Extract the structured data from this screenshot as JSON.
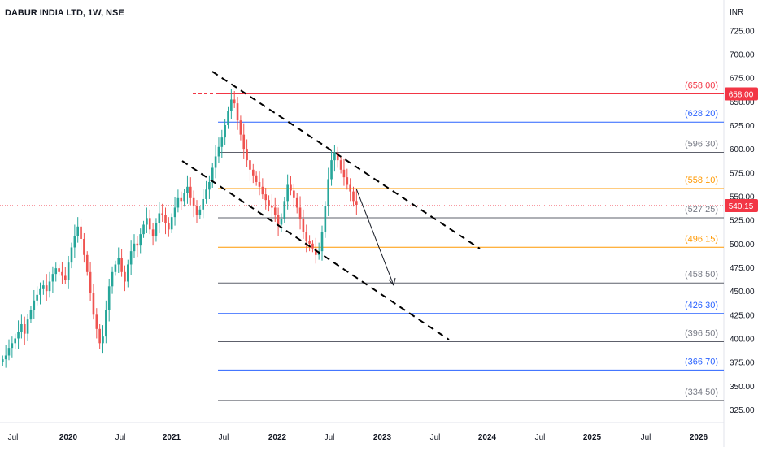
{
  "header": {
    "title": "DABUR INDIA LTD, 1W, NSE"
  },
  "currency_label": "INR",
  "colors": {
    "up": "#26a69a",
    "down": "#ef5350",
    "red_line": "#f23645",
    "blue_line": "#2962ff",
    "orange_line": "#ff9800",
    "grey_line": "#787b86",
    "axis_text": "#131722",
    "price_badge": "#f23645"
  },
  "chart_data": {
    "type": "candlestick",
    "title": "DABUR INDIA LTD, 1W, NSE",
    "ylabel": "INR",
    "ylim": [
      315,
      745
    ],
    "y_ticks": [
      "725.00",
      "700.00",
      "675.00",
      "650.00",
      "625.00",
      "600.00",
      "575.00",
      "550.00",
      "525.00",
      "500.00",
      "475.00",
      "450.00",
      "425.00",
      "400.00",
      "375.00",
      "350.00",
      "325.00"
    ],
    "x_ticks": [
      "Jul",
      "2020",
      "Jul",
      "2021",
      "Jul",
      "2022",
      "Jul",
      "2023",
      "Jul",
      "2024",
      "Jul",
      "2025",
      "Jul",
      "2026"
    ],
    "current_price": "540.15",
    "levels": [
      {
        "value": 658.0,
        "label": "(658.00)",
        "color": "red",
        "badge": "658.00"
      },
      {
        "value": 628.2,
        "label": "(628.20)",
        "color": "blue"
      },
      {
        "value": 596.3,
        "label": "(596.30)",
        "color": "grey"
      },
      {
        "value": 558.1,
        "label": "(558.10)",
        "color": "orange"
      },
      {
        "value": 527.25,
        "label": "(527.25)",
        "color": "grey"
      },
      {
        "value": 496.15,
        "label": "(496.15)",
        "color": "orange"
      },
      {
        "value": 458.5,
        "label": "(458.50)",
        "color": "grey"
      },
      {
        "value": 426.3,
        "label": "(426.30)",
        "color": "blue"
      },
      {
        "value": 396.5,
        "label": "(396.50)",
        "color": "grey"
      },
      {
        "value": 366.7,
        "label": "(366.70)",
        "color": "blue"
      },
      {
        "value": 334.5,
        "label": "(334.50)",
        "color": "grey"
      }
    ],
    "close_series": [
      378,
      382,
      390,
      395,
      400,
      407,
      415,
      405,
      420,
      430,
      440,
      446,
      452,
      456,
      450,
      460,
      468,
      474,
      470,
      466,
      462,
      480,
      496,
      508,
      518,
      505,
      488,
      470,
      448,
      425,
      410,
      395,
      402,
      430,
      455,
      470,
      478,
      485,
      470,
      460,
      478,
      492,
      500,
      498,
      510,
      520,
      527,
      515,
      508,
      522,
      532,
      530,
      522,
      515,
      528,
      538,
      548,
      545,
      553,
      560,
      548,
      540,
      530,
      536,
      547,
      557,
      565,
      580,
      592,
      602,
      612,
      625,
      640,
      652,
      648,
      630,
      615,
      600,
      588,
      578,
      572,
      565,
      560,
      552,
      546,
      540,
      538,
      530,
      520,
      526,
      545,
      562,
      556,
      548,
      538,
      526,
      512,
      503,
      500,
      495,
      488,
      492,
      512,
      540,
      568,
      588,
      596,
      588,
      578,
      570,
      562,
      555,
      545,
      541
    ]
  }
}
